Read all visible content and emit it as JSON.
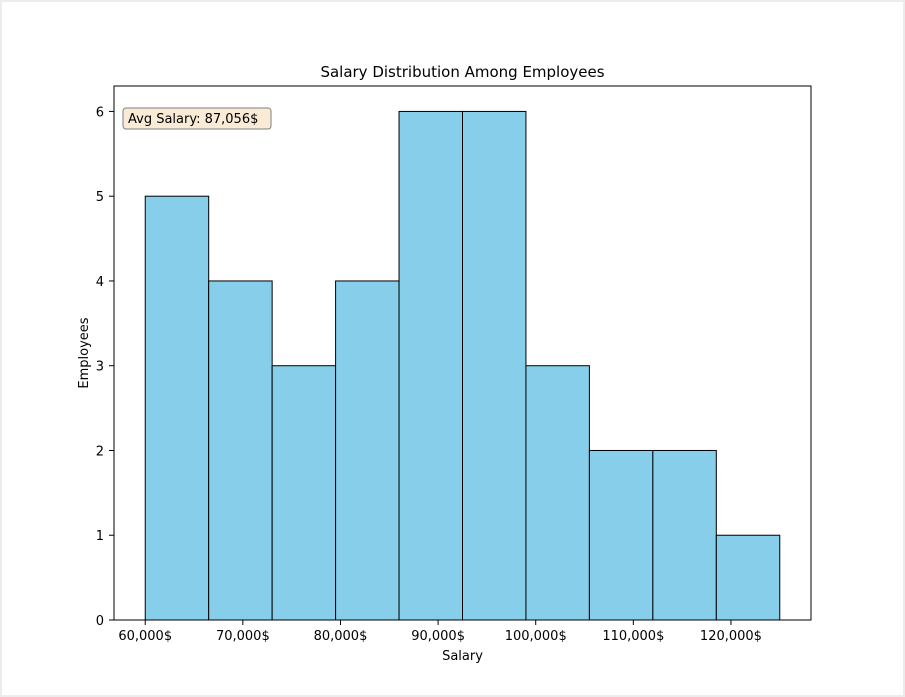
{
  "chart_data": {
    "type": "bar",
    "title": "Salary Distribution Among Employees",
    "xlabel": "Salary",
    "ylabel": "Employees",
    "bins": [
      {
        "start": 60000,
        "end": 66500,
        "count": 5
      },
      {
        "start": 66500,
        "end": 73000,
        "count": 4
      },
      {
        "start": 73000,
        "end": 79500,
        "count": 3
      },
      {
        "start": 79500,
        "end": 86000,
        "count": 4
      },
      {
        "start": 86000,
        "end": 92500,
        "count": 6
      },
      {
        "start": 92500,
        "end": 99000,
        "count": 6
      },
      {
        "start": 99000,
        "end": 105500,
        "count": 3
      },
      {
        "start": 105500,
        "end": 112000,
        "count": 2
      },
      {
        "start": 112000,
        "end": 118500,
        "count": 2
      },
      {
        "start": 118500,
        "end": 125000,
        "count": 1
      }
    ],
    "xlim": [
      56800,
      128200
    ],
    "ylim": [
      0,
      6.3
    ],
    "x_ticks": [
      60000,
      70000,
      80000,
      90000,
      100000,
      110000,
      120000
    ],
    "x_tick_labels": [
      "60,000$",
      "70,000$",
      "80,000$",
      "90,000$",
      "100,000$",
      "110,000$",
      "120,000$"
    ],
    "y_ticks": [
      0,
      1,
      2,
      3,
      4,
      5,
      6
    ],
    "y_tick_labels": [
      "0",
      "1",
      "2",
      "3",
      "4",
      "5",
      "6"
    ],
    "annotation": "Avg Salary: 87,056$",
    "grid": false,
    "colors": {
      "bar_fill": "#87ceeb",
      "bar_edge": "#000000",
      "annotation_fill": "#faebd7",
      "annotation_edge": "#7f7f7f"
    }
  }
}
